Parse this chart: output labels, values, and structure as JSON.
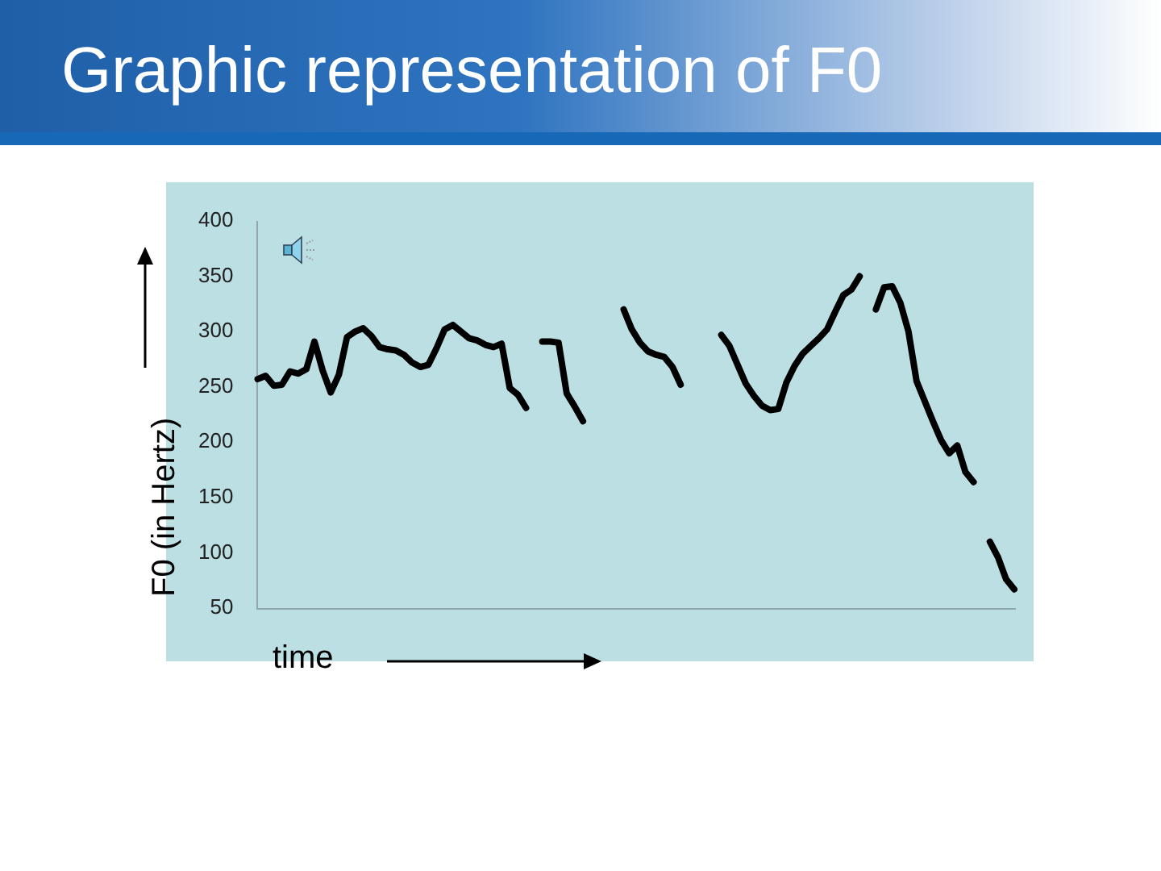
{
  "chart_data": {
    "type": "line",
    "title": "Graphic representation of F0",
    "xlabel": "time",
    "ylabel": "F0 (in Hertz)",
    "categories": [
      null,
      null,
      null,
      null,
      null,
      null,
      null,
      null,
      null,
      null,
      null,
      null,
      null,
      null,
      null,
      null,
      null,
      null,
      null,
      null,
      null,
      null,
      null,
      null,
      null,
      null,
      null,
      null,
      null,
      null,
      null,
      null,
      null,
      null,
      null,
      null,
      null,
      null,
      null,
      null,
      null,
      null,
      null,
      null,
      null,
      null,
      null,
      null,
      null,
      null,
      null,
      null,
      null,
      null,
      null,
      null,
      null,
      null,
      null,
      null,
      null,
      null,
      null,
      null,
      null,
      null,
      null,
      null,
      null,
      null,
      null,
      null,
      null,
      null,
      null,
      null,
      null,
      null,
      null,
      null,
      null,
      null,
      null,
      null,
      null,
      null,
      null,
      null,
      null,
      null,
      null,
      null,
      null,
      null
    ],
    "series": [
      {
        "color": "#000000",
        "values": [
          257,
          260,
          251,
          252,
          264,
          262,
          266,
          291,
          265,
          245,
          261,
          295,
          300,
          303,
          296,
          286,
          284,
          283,
          279,
          272,
          268,
          270,
          285,
          302,
          306,
          300,
          294,
          292,
          288,
          286,
          289,
          249,
          243,
          231,
          null,
          null,
          null,
          null,
          null,
          null,
          null,
          null,
          null,
          null,
          null,
          null,
          null,
          null,
          null,
          null,
          null,
          null,
          null,
          null,
          null,
          null,
          null,
          null,
          null,
          null,
          null,
          null,
          null,
          null,
          null,
          null,
          null,
          null,
          null,
          null,
          null,
          null,
          null,
          null,
          null,
          null,
          null,
          null,
          null,
          null,
          null,
          null,
          null,
          null,
          null,
          null,
          null,
          null,
          null,
          null,
          null,
          null,
          null,
          null
        ]
      },
      {
        "color": "#000000",
        "values": [
          null,
          null,
          null,
          null,
          null,
          null,
          null,
          null,
          null,
          null,
          null,
          null,
          null,
          null,
          null,
          null,
          null,
          null,
          null,
          null,
          null,
          null,
          null,
          null,
          null,
          null,
          null,
          null,
          null,
          null,
          null,
          null,
          null,
          null,
          null,
          291,
          291,
          290,
          244,
          232,
          219,
          null,
          null,
          null,
          null,
          null,
          null,
          null,
          null,
          null,
          null,
          null,
          null,
          null,
          null,
          null,
          null,
          null,
          null,
          null,
          null,
          null,
          null,
          null,
          null,
          null,
          null,
          null,
          null,
          null,
          null,
          null,
          null,
          null,
          null,
          null,
          null,
          null,
          null,
          null,
          null,
          null,
          null,
          null,
          null,
          null,
          null,
          null,
          null,
          null,
          null,
          null,
          null,
          null
        ]
      },
      {
        "color": "#000000",
        "values": [
          null,
          null,
          null,
          null,
          null,
          null,
          null,
          null,
          null,
          null,
          null,
          null,
          null,
          null,
          null,
          null,
          null,
          null,
          null,
          null,
          null,
          null,
          null,
          null,
          null,
          null,
          null,
          null,
          null,
          null,
          null,
          null,
          null,
          null,
          null,
          null,
          null,
          null,
          null,
          null,
          null,
          null,
          null,
          null,
          null,
          320,
          302,
          290,
          282,
          279,
          277,
          268,
          252,
          null,
          null,
          null,
          null,
          null,
          null,
          null,
          null,
          null,
          null,
          null,
          null,
          null,
          null,
          null,
          null,
          null,
          null,
          null,
          null,
          null,
          null,
          null,
          null,
          null,
          null,
          null,
          null,
          null,
          null,
          null,
          null,
          null,
          null,
          null,
          null,
          null,
          null,
          null,
          null,
          null
        ]
      },
      {
        "color": "#000000",
        "values": [
          null,
          null,
          null,
          null,
          null,
          null,
          null,
          null,
          null,
          null,
          null,
          null,
          null,
          null,
          null,
          null,
          null,
          null,
          null,
          null,
          null,
          null,
          null,
          null,
          null,
          null,
          null,
          null,
          null,
          null,
          null,
          null,
          null,
          null,
          null,
          null,
          null,
          null,
          null,
          null,
          null,
          null,
          null,
          null,
          null,
          null,
          null,
          null,
          null,
          null,
          null,
          null,
          null,
          null,
          null,
          null,
          null,
          297,
          287,
          270,
          253,
          242,
          233,
          229,
          230,
          254,
          269,
          280,
          287,
          294,
          302,
          318,
          333,
          338,
          350,
          null,
          null,
          null,
          null,
          null,
          null,
          null,
          null,
          null,
          null,
          null,
          null,
          null,
          null,
          null,
          null,
          null,
          null,
          null
        ]
      },
      {
        "color": "#000000",
        "values": [
          null,
          null,
          null,
          null,
          null,
          null,
          null,
          null,
          null,
          null,
          null,
          null,
          null,
          null,
          null,
          null,
          null,
          null,
          null,
          null,
          null,
          null,
          null,
          null,
          null,
          null,
          null,
          null,
          null,
          null,
          null,
          null,
          null,
          null,
          null,
          null,
          null,
          null,
          null,
          null,
          null,
          null,
          null,
          null,
          null,
          null,
          null,
          null,
          null,
          null,
          null,
          null,
          null,
          null,
          null,
          null,
          null,
          null,
          null,
          null,
          null,
          null,
          null,
          null,
          null,
          null,
          null,
          null,
          null,
          null,
          null,
          null,
          null,
          null,
          null,
          null,
          320,
          340,
          341,
          326,
          300,
          255,
          237,
          219,
          202,
          190,
          197,
          173,
          164,
          null,
          null,
          null,
          null,
          null
        ]
      },
      {
        "color": "#000000",
        "values": [
          null,
          null,
          null,
          null,
          null,
          null,
          null,
          null,
          null,
          null,
          null,
          null,
          null,
          null,
          null,
          null,
          null,
          null,
          null,
          null,
          null,
          null,
          null,
          null,
          null,
          null,
          null,
          null,
          null,
          null,
          null,
          null,
          null,
          null,
          null,
          null,
          null,
          null,
          null,
          null,
          null,
          null,
          null,
          null,
          null,
          null,
          null,
          null,
          null,
          null,
          null,
          null,
          null,
          null,
          null,
          null,
          null,
          null,
          null,
          null,
          null,
          null,
          null,
          null,
          null,
          null,
          null,
          null,
          null,
          null,
          null,
          null,
          null,
          null,
          null,
          null,
          null,
          null,
          null,
          null,
          null,
          null,
          null,
          null,
          null,
          null,
          null,
          null,
          null,
          null,
          110,
          96,
          76,
          67
        ]
      }
    ],
    "ylim": [
      50,
      400
    ],
    "yticks": [
      50,
      100,
      150,
      200,
      250,
      300,
      350,
      400
    ],
    "tick_labels": "y",
    "marker": "none",
    "line_style": "solid"
  }
}
